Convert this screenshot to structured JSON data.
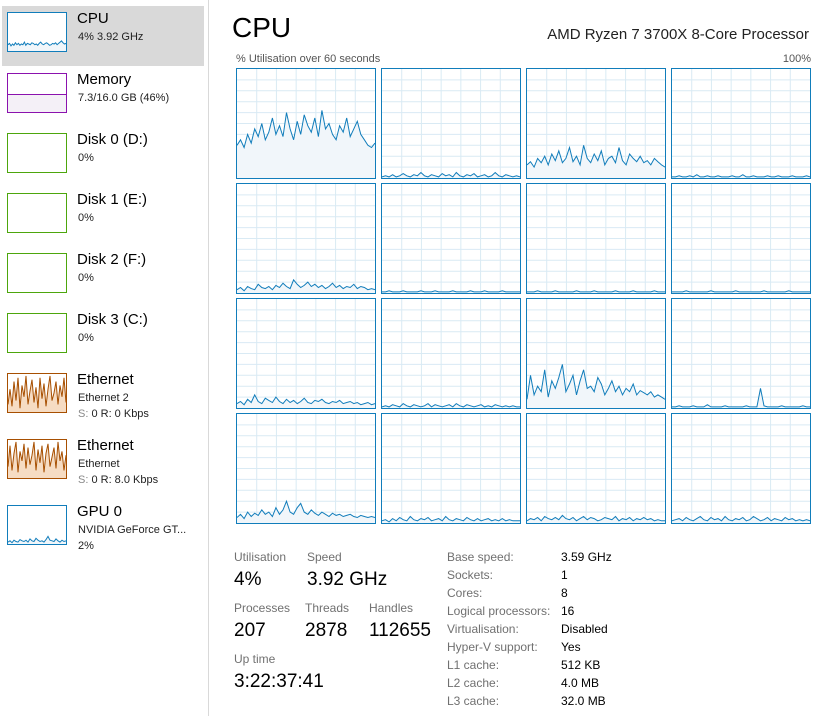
{
  "sidebar": {
    "items": [
      {
        "name": "CPU",
        "line1": "4% 3.92 GHz",
        "line2_prefix": "",
        "line2": "",
        "color": "#117dbb",
        "fill": "#f1f6fa",
        "kind": "cpu",
        "values": [
          10,
          12,
          8,
          11,
          9,
          13,
          10,
          12,
          9,
          11,
          10,
          14,
          9,
          12,
          11,
          10,
          13,
          12,
          10,
          11,
          9,
          12,
          14,
          11,
          10,
          12,
          13,
          11,
          9,
          10,
          12,
          11,
          13,
          10,
          12,
          14,
          16,
          13,
          11,
          12
        ]
      },
      {
        "name": "Memory",
        "line1": "7.3/16.0 GB (46%)",
        "line2_prefix": "",
        "line2": "",
        "color": "#8b12ae",
        "fill": "#f4f0f7",
        "kind": "mem",
        "values": [
          46,
          46,
          46,
          46,
          46,
          46,
          46,
          46,
          46,
          46
        ]
      },
      {
        "name": "Disk 0 (D:)",
        "line1": "0%",
        "line2_prefix": "",
        "line2": "",
        "color": "#4da60c",
        "fill": "#eff7e7",
        "kind": "disk",
        "values": []
      },
      {
        "name": "Disk 1 (E:)",
        "line1": "0%",
        "line2_prefix": "",
        "line2": "",
        "color": "#4da60c",
        "fill": "#eff7e7",
        "kind": "disk",
        "values": []
      },
      {
        "name": "Disk 2 (F:)",
        "line1": "0%",
        "line2_prefix": "",
        "line2": "",
        "color": "#4da60c",
        "fill": "#eff7e7",
        "kind": "disk",
        "values": []
      },
      {
        "name": "Disk 3 (C:)",
        "line1": "0%",
        "line2_prefix": "",
        "line2": "",
        "color": "#4da60c",
        "fill": "#eff7e7",
        "kind": "disk",
        "values": []
      },
      {
        "name": "Ethernet",
        "line1": "Ethernet 2",
        "line2_prefix": "S: ",
        "line2": "0 R: 0 Kbps",
        "color": "#a74f01",
        "fill": "#fcf3eb",
        "kind": "net",
        "values": [
          20,
          60,
          15,
          80,
          30,
          90,
          10,
          70,
          40,
          95,
          20,
          55,
          85,
          25,
          65,
          10,
          90,
          35,
          75,
          15,
          60,
          95,
          30,
          50,
          80,
          20,
          70,
          40,
          90,
          25
        ]
      },
      {
        "name": "Ethernet",
        "line1": "Ethernet",
        "line2_prefix": "S: ",
        "line2": "0 R: 8.0 Kbps",
        "color": "#a74f01",
        "fill": "#fcf3eb",
        "kind": "net",
        "values": [
          30,
          85,
          20,
          65,
          95,
          15,
          70,
          45,
          90,
          25,
          80,
          35,
          60,
          95,
          20,
          75,
          40,
          85,
          15,
          65,
          90,
          30,
          55,
          80,
          25,
          95,
          45,
          70,
          20,
          60
        ]
      },
      {
        "name": "GPU 0",
        "line1": "NVIDIA GeForce GT...",
        "line2_prefix": "",
        "line2": "2%",
        "color": "#117dbb",
        "fill": "#f1f6fa",
        "kind": "gpu",
        "values": [
          3,
          5,
          2,
          6,
          4,
          3,
          7,
          5,
          4,
          6,
          3,
          8,
          5,
          4,
          9,
          6,
          4,
          5,
          3,
          7,
          12,
          6,
          5,
          4,
          8,
          5,
          3,
          6,
          4,
          5
        ]
      }
    ]
  },
  "main": {
    "title": "CPU",
    "processor": "AMD Ryzen 7 3700X 8-Core Processor",
    "axis_left": "% Utilisation over 60 seconds",
    "axis_right": "100%",
    "graph_color": "#117dbb",
    "graph_fill": "#f1f6fa",
    "grid_color": "#d9eaf4",
    "cores": [
      [
        30,
        35,
        28,
        40,
        32,
        45,
        38,
        50,
        35,
        42,
        55,
        40,
        48,
        38,
        60,
        45,
        35,
        52,
        40,
        58,
        48,
        42,
        55,
        38,
        62,
        45,
        50,
        40,
        35,
        48,
        42,
        55,
        38,
        45,
        52,
        40,
        35,
        30,
        28,
        32
      ],
      [
        1,
        2,
        1,
        3,
        1,
        2,
        4,
        2,
        1,
        3,
        2,
        5,
        2,
        1,
        3,
        2,
        1,
        4,
        2,
        3,
        1,
        5,
        2,
        1,
        3,
        2,
        4,
        1,
        2,
        3,
        1,
        2,
        5,
        2,
        1,
        3,
        2,
        1,
        2,
        1
      ],
      [
        12,
        15,
        10,
        18,
        14,
        20,
        12,
        22,
        16,
        25,
        14,
        18,
        28,
        15,
        20,
        12,
        30,
        18,
        14,
        22,
        16,
        25,
        12,
        18,
        20,
        14,
        28,
        16,
        12,
        22,
        18,
        15,
        20,
        14,
        16,
        12,
        18,
        15,
        12,
        10
      ],
      [
        1,
        1,
        2,
        1,
        1,
        2,
        1,
        3,
        1,
        1,
        2,
        1,
        1,
        2,
        1,
        1,
        1,
        2,
        1,
        1,
        3,
        1,
        1,
        2,
        1,
        1,
        1,
        2,
        1,
        1,
        2,
        1,
        1,
        1,
        2,
        1,
        1,
        1,
        2,
        1
      ],
      [
        3,
        5,
        2,
        6,
        4,
        3,
        8,
        5,
        4,
        6,
        3,
        7,
        5,
        9,
        6,
        4,
        12,
        8,
        5,
        7,
        10,
        6,
        8,
        5,
        7,
        4,
        6,
        9,
        5,
        7,
        4,
        6,
        5,
        8,
        4,
        6,
        5,
        3,
        4,
        3
      ],
      [
        1,
        1,
        2,
        1,
        1,
        1,
        2,
        1,
        1,
        1,
        1,
        2,
        1,
        1,
        1,
        2,
        1,
        1,
        1,
        1,
        2,
        1,
        1,
        1,
        1,
        2,
        1,
        1,
        1,
        2,
        1,
        1,
        1,
        1,
        2,
        1,
        1,
        1,
        1,
        1
      ],
      [
        1,
        1,
        1,
        2,
        1,
        1,
        1,
        1,
        2,
        1,
        1,
        1,
        1,
        1,
        2,
        1,
        1,
        1,
        1,
        2,
        1,
        1,
        1,
        1,
        1,
        2,
        1,
        1,
        1,
        1,
        2,
        1,
        1,
        1,
        1,
        1,
        2,
        1,
        1,
        1
      ],
      [
        1,
        1,
        1,
        1,
        2,
        1,
        1,
        1,
        1,
        1,
        1,
        2,
        1,
        1,
        1,
        1,
        1,
        1,
        2,
        1,
        1,
        1,
        1,
        1,
        1,
        1,
        2,
        1,
        1,
        1,
        1,
        1,
        1,
        2,
        1,
        1,
        1,
        1,
        1,
        1
      ],
      [
        4,
        6,
        3,
        8,
        5,
        12,
        6,
        4,
        9,
        7,
        5,
        10,
        6,
        4,
        8,
        5,
        7,
        4,
        6,
        9,
        5,
        4,
        7,
        6,
        8,
        5,
        4,
        6,
        5,
        7,
        4,
        5,
        6,
        4,
        5,
        3,
        4,
        5,
        3,
        4
      ],
      [
        1,
        2,
        1,
        3,
        2,
        1,
        4,
        2,
        1,
        3,
        2,
        1,
        2,
        4,
        1,
        3,
        2,
        1,
        2,
        3,
        1,
        4,
        2,
        1,
        3,
        2,
        1,
        2,
        3,
        1,
        2,
        1,
        3,
        2,
        1,
        2,
        1,
        2,
        1,
        1
      ],
      [
        8,
        30,
        12,
        20,
        15,
        35,
        10,
        25,
        18,
        28,
        40,
        15,
        22,
        30,
        12,
        25,
        35,
        18,
        20,
        15,
        28,
        22,
        12,
        18,
        25,
        15,
        20,
        12,
        18,
        15,
        22,
        12,
        16,
        14,
        12,
        15,
        10,
        12,
        10,
        8
      ],
      [
        1,
        1,
        2,
        1,
        1,
        1,
        2,
        1,
        1,
        1,
        3,
        1,
        1,
        1,
        1,
        2,
        1,
        1,
        1,
        1,
        1,
        2,
        1,
        1,
        1,
        18,
        2,
        1,
        1,
        1,
        1,
        2,
        1,
        1,
        1,
        1,
        1,
        2,
        1,
        1
      ],
      [
        5,
        8,
        4,
        10,
        6,
        9,
        7,
        12,
        8,
        10,
        6,
        14,
        8,
        12,
        20,
        10,
        8,
        14,
        18,
        10,
        8,
        12,
        9,
        7,
        10,
        8,
        6,
        9,
        7,
        8,
        6,
        7,
        8,
        6,
        5,
        7,
        6,
        5,
        6,
        5
      ],
      [
        2,
        3,
        1,
        4,
        2,
        5,
        3,
        2,
        6,
        3,
        2,
        4,
        3,
        5,
        2,
        3,
        4,
        2,
        6,
        3,
        2,
        4,
        3,
        2,
        5,
        3,
        2,
        4,
        2,
        3,
        4,
        2,
        3,
        2,
        4,
        2,
        3,
        2,
        2,
        2
      ],
      [
        2,
        4,
        3,
        5,
        2,
        6,
        4,
        3,
        5,
        3,
        7,
        4,
        3,
        5,
        2,
        4,
        6,
        3,
        5,
        4,
        2,
        3,
        5,
        4,
        3,
        6,
        2,
        4,
        3,
        5,
        2,
        4,
        3,
        5,
        3,
        4,
        2,
        3,
        2,
        2
      ],
      [
        2,
        3,
        4,
        2,
        5,
        3,
        2,
        4,
        6,
        3,
        2,
        5,
        3,
        4,
        2,
        6,
        3,
        2,
        4,
        3,
        5,
        2,
        3,
        6,
        4,
        2,
        3,
        5,
        2,
        4,
        3,
        2,
        5,
        3,
        4,
        2,
        3,
        2,
        3,
        2
      ]
    ]
  },
  "stats": {
    "utilisation_label": "Utilisation",
    "utilisation": "4%",
    "speed_label": "Speed",
    "speed": "3.92 GHz",
    "processes_label": "Processes",
    "processes": "207",
    "threads_label": "Threads",
    "threads": "2878",
    "handles_label": "Handles",
    "handles": "112655",
    "uptime_label": "Up time",
    "uptime": "3:22:37:41",
    "specs": [
      {
        "key": "Base speed:",
        "value": "3.59 GHz"
      },
      {
        "key": "Sockets:",
        "value": "1"
      },
      {
        "key": "Cores:",
        "value": "8"
      },
      {
        "key": "Logical processors:",
        "value": "16"
      },
      {
        "key": "Virtualisation:",
        "value": "Disabled"
      },
      {
        "key": "Hyper-V support:",
        "value": "Yes"
      },
      {
        "key": "L1 cache:",
        "value": "512 KB"
      },
      {
        "key": "L2 cache:",
        "value": "4.0 MB"
      },
      {
        "key": "L3 cache:",
        "value": "32.0 MB"
      }
    ]
  }
}
